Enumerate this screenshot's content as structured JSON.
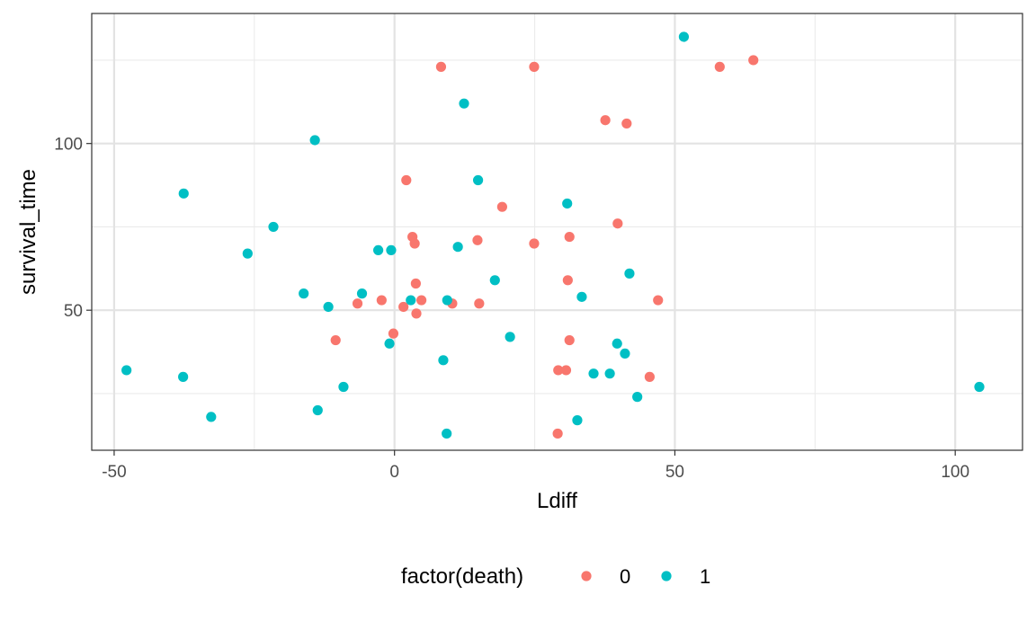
{
  "chart_data": {
    "type": "scatter",
    "xlabel": "Ldiff",
    "ylabel": "survival_time",
    "xlim": [
      -54,
      112
    ],
    "ylim": [
      8,
      139
    ],
    "x_ticks": [
      -50,
      0,
      50,
      100
    ],
    "x_tick_labels": [
      "-50",
      "0",
      "50",
      "100"
    ],
    "y_ticks": [
      50,
      100
    ],
    "y_tick_labels": [
      "50",
      "100"
    ],
    "grid": true,
    "legend_position": "bottom",
    "legend_title": "factor(death)",
    "series": [
      {
        "name": "0",
        "color": "#F8766D",
        "points": [
          [
            8.3,
            123
          ],
          [
            24.9,
            123
          ],
          [
            58,
            123
          ],
          [
            64,
            125
          ],
          [
            37.6,
            107
          ],
          [
            41.4,
            106
          ],
          [
            2.1,
            89
          ],
          [
            19.2,
            81
          ],
          [
            39.8,
            76
          ],
          [
            3.2,
            72
          ],
          [
            31.2,
            72
          ],
          [
            3.6,
            70
          ],
          [
            14.8,
            71
          ],
          [
            24.9,
            70
          ],
          [
            3.8,
            58
          ],
          [
            30.9,
            59
          ],
          [
            4.8,
            53
          ],
          [
            -2.3,
            53
          ],
          [
            -6.6,
            52
          ],
          [
            1.6,
            51
          ],
          [
            3.9,
            49
          ],
          [
            10.3,
            52
          ],
          [
            15.1,
            52
          ],
          [
            47,
            53
          ],
          [
            -10.5,
            41
          ],
          [
            -0.2,
            43
          ],
          [
            31.2,
            41
          ],
          [
            29.2,
            32
          ],
          [
            30.6,
            32
          ],
          [
            45.5,
            30
          ],
          [
            29.1,
            13
          ]
        ]
      },
      {
        "name": "1",
        "color": "#00BFC4",
        "points": [
          [
            51.6,
            132
          ],
          [
            12.4,
            112
          ],
          [
            -14.2,
            101
          ],
          [
            14.9,
            89
          ],
          [
            -37.6,
            85
          ],
          [
            30.8,
            82
          ],
          [
            -21.6,
            75
          ],
          [
            -26.2,
            67
          ],
          [
            -2.9,
            68
          ],
          [
            -0.6,
            68
          ],
          [
            11.3,
            69
          ],
          [
            17.9,
            59
          ],
          [
            41.9,
            61
          ],
          [
            33.4,
            54
          ],
          [
            -16.2,
            55
          ],
          [
            -5.8,
            55
          ],
          [
            2.9,
            53
          ],
          [
            9.4,
            53
          ],
          [
            -11.8,
            51
          ],
          [
            20.6,
            42
          ],
          [
            -0.9,
            40
          ],
          [
            39.7,
            40
          ],
          [
            41.1,
            37
          ],
          [
            8.7,
            35
          ],
          [
            35.5,
            31
          ],
          [
            38.4,
            31
          ],
          [
            -47.8,
            32
          ],
          [
            -37.7,
            30
          ],
          [
            -9.1,
            27
          ],
          [
            43.3,
            24
          ],
          [
            104.3,
            27
          ],
          [
            -13.7,
            20
          ],
          [
            -32.7,
            18
          ],
          [
            32.6,
            17
          ],
          [
            9.3,
            13
          ]
        ]
      }
    ]
  }
}
